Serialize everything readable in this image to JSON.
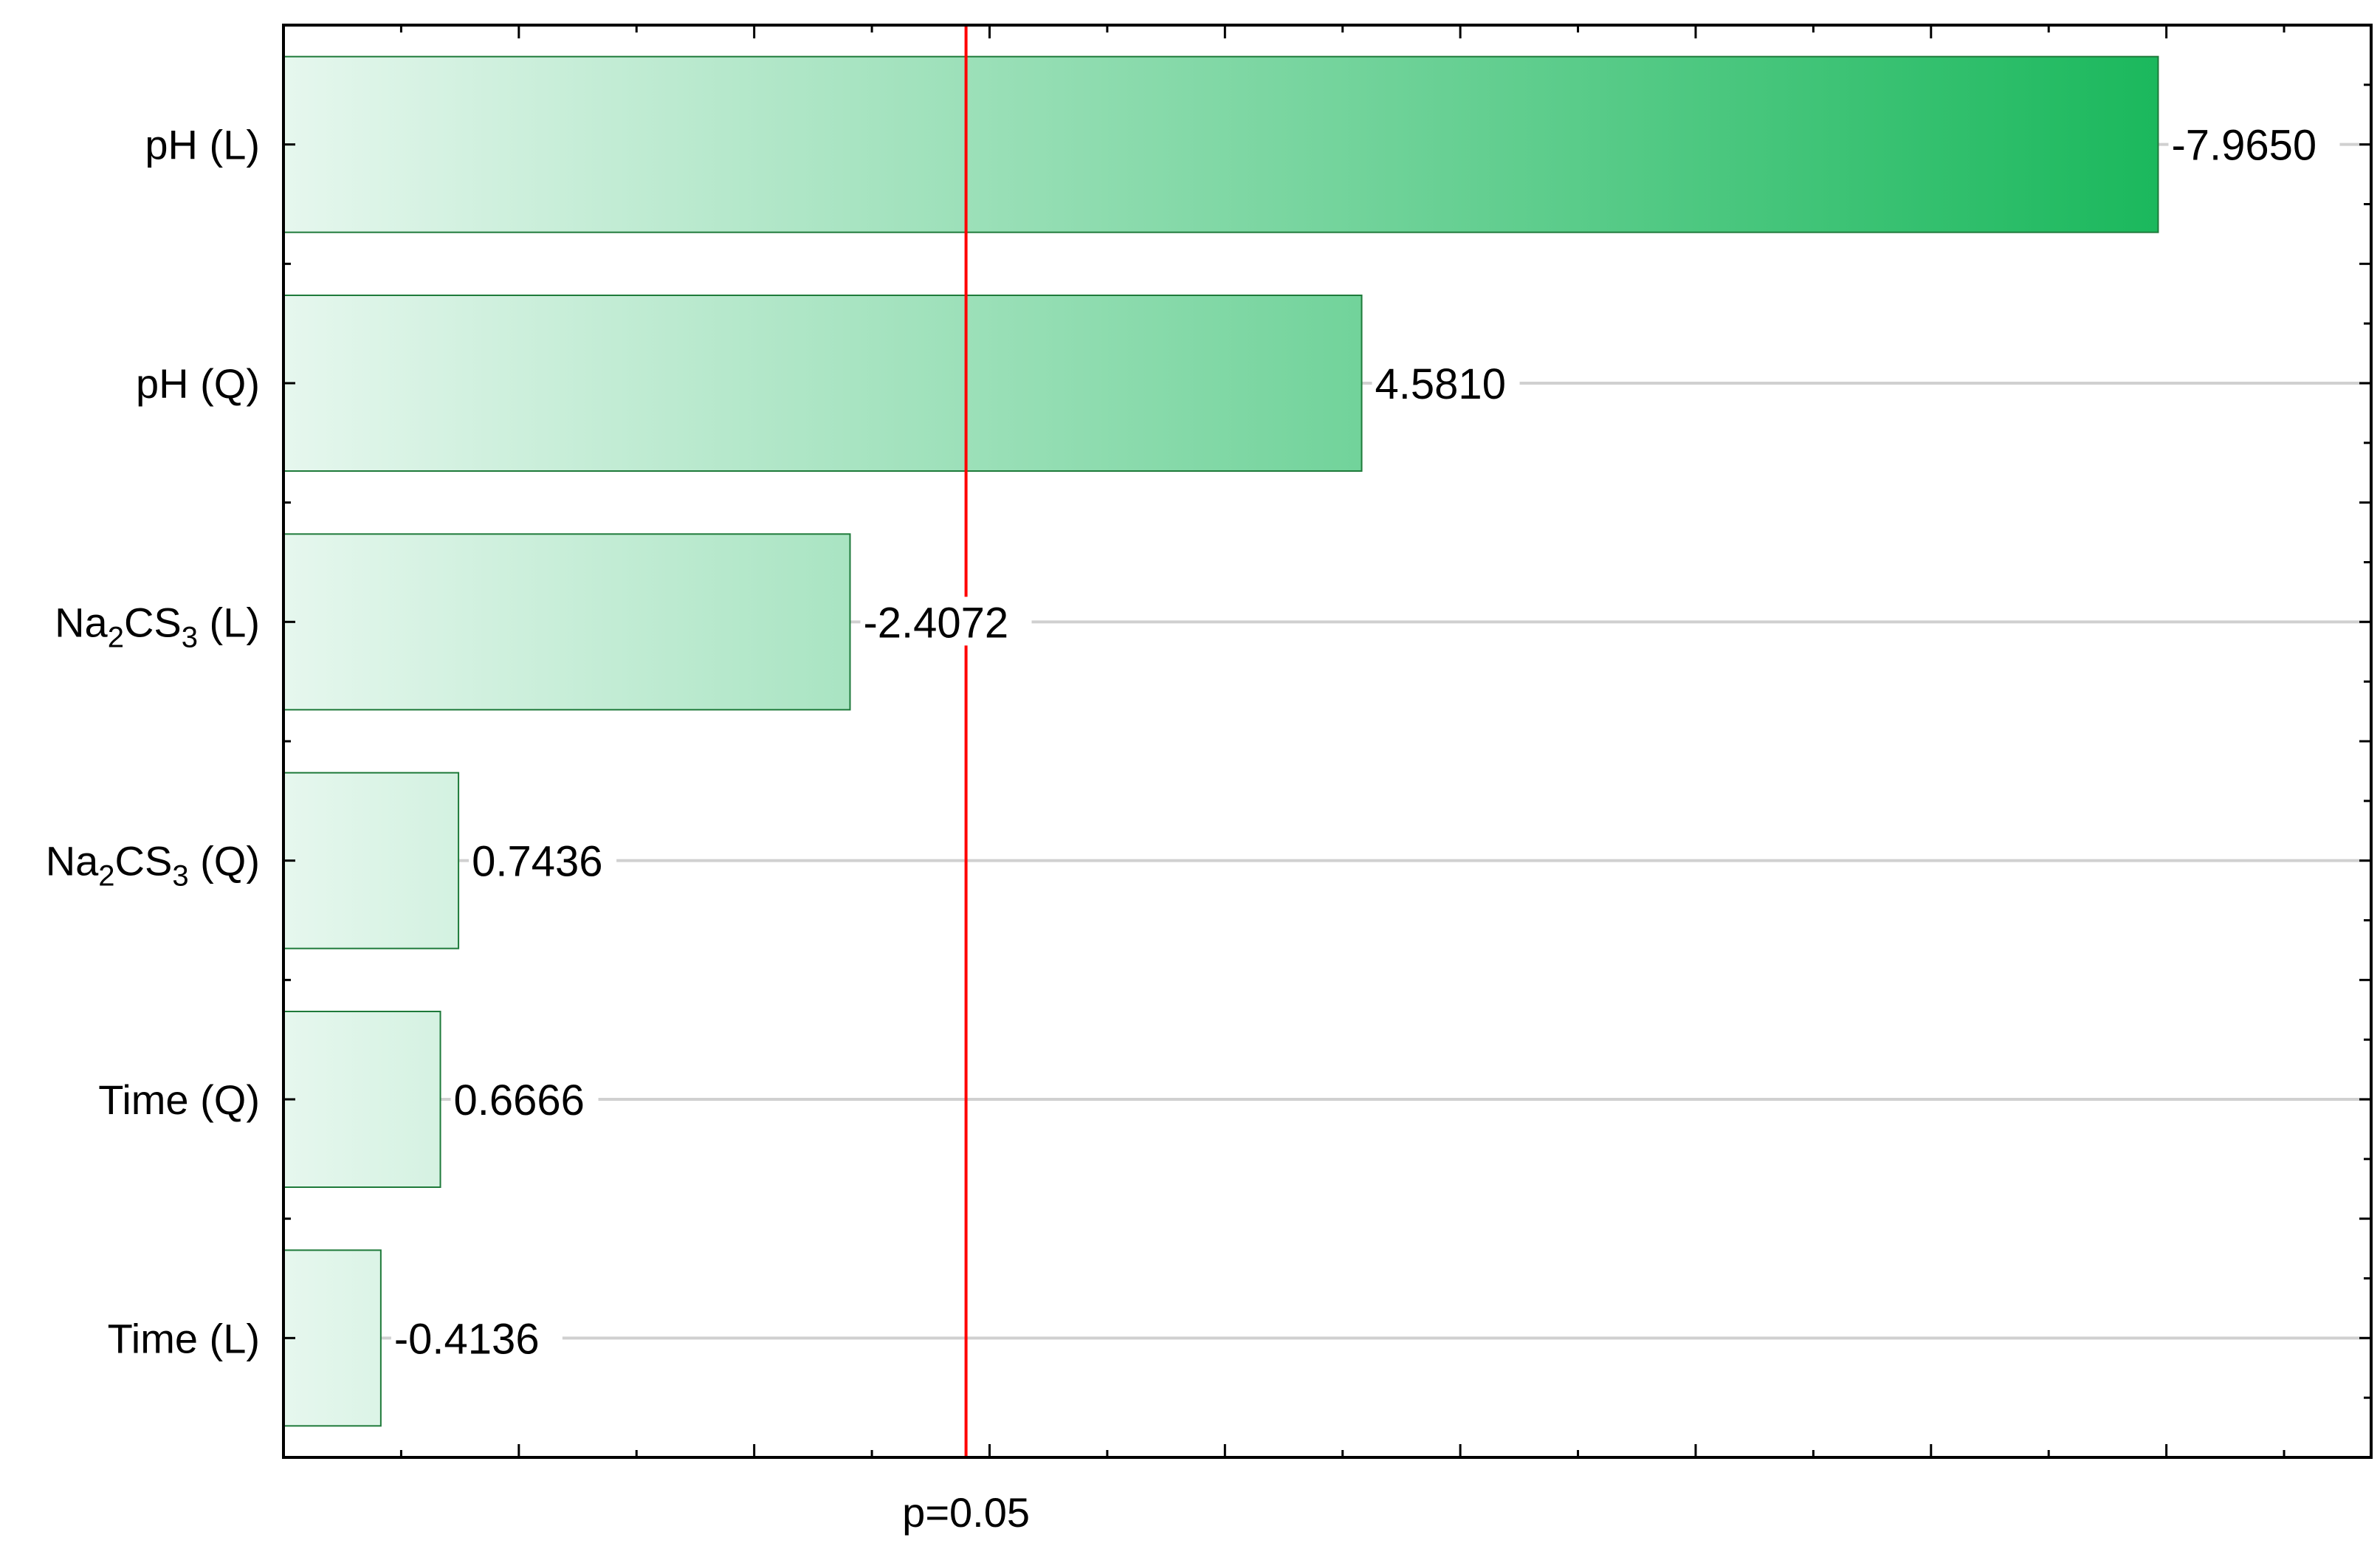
{
  "chart_data": {
    "type": "bar",
    "orientation": "horizontal",
    "title": "",
    "xlabel": "",
    "ylabel": "",
    "xlim": [
      0,
      8.87
    ],
    "categories": [
      {
        "base": "pH",
        "sub": "",
        "base2": "",
        "sub2": "",
        "suffix": " (L)"
      },
      {
        "base": "pH",
        "sub": "",
        "base2": "",
        "sub2": "",
        "suffix": " (Q)"
      },
      {
        "base": "Na",
        "sub": "2",
        "base2": "CS",
        "sub2": "3",
        "suffix": " (L)"
      },
      {
        "base": "Na",
        "sub": "2",
        "base2": "CS",
        "sub2": "3",
        "suffix": " (Q)"
      },
      {
        "base": "Time",
        "sub": "",
        "base2": "",
        "sub2": "",
        "suffix": " (Q)"
      },
      {
        "base": "Time",
        "sub": "",
        "base2": "",
        "sub2": "",
        "suffix": " (L)"
      }
    ],
    "values": [
      -7.965,
      4.581,
      -2.4072,
      0.7436,
      0.6666,
      -0.4136
    ],
    "value_labels": [
      "-7.9650",
      "4.5810",
      "-2.4072",
      "0.7436",
      "0.6666",
      "-0.4136"
    ],
    "reference_line": {
      "value": 2.9,
      "label": "p=0.05",
      "color": "#ff0000"
    },
    "bar_gradient": {
      "start": "#e6f7ee",
      "end": "#1ab85c",
      "border": "#1e7a3a"
    },
    "grid": true,
    "gridline_color": "#d0d0d0"
  }
}
